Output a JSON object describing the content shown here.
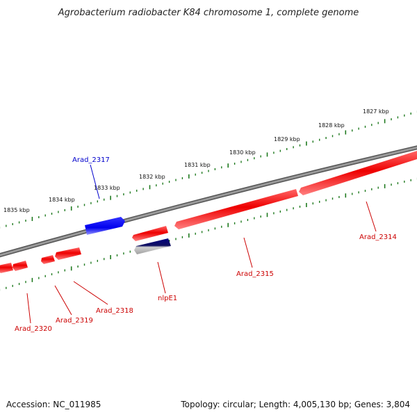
{
  "title": "Agrobacterium radiobacter K84 chromosome 1, complete genome",
  "footer": {
    "accession": "Accession: NC_011985",
    "summary": "Topology: circular; Length: 4,005,130 bp; Genes: 3,804"
  },
  "colors": {
    "backbone": "#7a7a7a",
    "tick_green": "#1f7a1f",
    "forward_gene": "#0000ee",
    "reverse_gene": "#ee0000",
    "nlpE1_top": "#000080",
    "nlpE1_bottom": "#b0b0b0",
    "label_blue": "#0000cc",
    "label_red": "#cc0000"
  },
  "kbp_markers": [
    "1827 kbp",
    "1828 kbp",
    "1829 kbp",
    "1830 kbp",
    "1831 kbp",
    "1832 kbp",
    "1833 kbp",
    "1834 kbp",
    "1835 kbp"
  ],
  "genes": [
    {
      "label": "Arad_2317",
      "strand": "forward"
    },
    {
      "label": "nlpE1",
      "strand": "reverse"
    },
    {
      "label": "Arad_2314",
      "strand": "reverse"
    },
    {
      "label": "Arad_2315",
      "strand": "reverse"
    },
    {
      "label": "Arad_2318",
      "strand": "reverse"
    },
    {
      "label": "Arad_2319",
      "strand": "reverse"
    },
    {
      "label": "Arad_2320",
      "strand": "reverse"
    }
  ]
}
